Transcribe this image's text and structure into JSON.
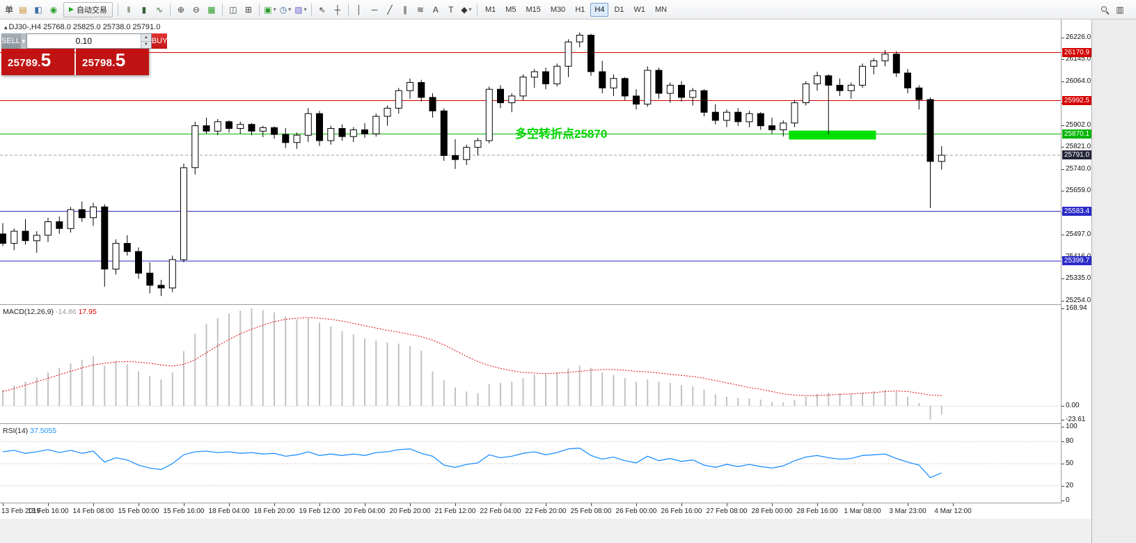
{
  "chart_title": {
    "marker": "▴",
    "symbol_period": "DJ30-,H4",
    "open": "25768.0",
    "high": "25825.0",
    "low": "25738.0",
    "close": "25791.0"
  },
  "trade_panel": {
    "sell_label": "SELL",
    "buy_label": "BUY",
    "volume": "0.10",
    "dropdown_caret": "▼",
    "stepper_up": "▲",
    "stepper_down": "▼",
    "sell_price": "25789.",
    "sell_price_big": "5",
    "buy_price": "25798.",
    "buy_price_big": "5"
  },
  "annotation_text": "多空转折点25870",
  "indicators": {
    "macd_name": "MACD(12,26,9)",
    "macd_main": "-14.86",
    "macd_signal": "17.95",
    "rsi_name": "RSI(14)",
    "rsi_value": "37.5055"
  },
  "colors": {
    "up": "#FFFFFF",
    "down": "#000000",
    "outline": "#000000",
    "macd_hist": "#c2c2c2",
    "macd_signal": "#e00000",
    "rsi": "#1E90FF",
    "annotation": "#00d400",
    "rect_fill": "#00e000",
    "bid_label_bg": "#24243a"
  },
  "toolbar": {
    "items": [
      {
        "kind": "label",
        "name": "order-menu-label",
        "text": "单"
      },
      {
        "kind": "icon",
        "name": "new-order-icon",
        "glyph": "▤",
        "color": "#c8821e"
      },
      {
        "kind": "icon",
        "name": "market-watch-icon",
        "glyph": "◧",
        "color": "#3a6ea5"
      },
      {
        "kind": "icon",
        "name": "sounds-icon",
        "glyph": "◉",
        "color": "#2a9d2a"
      },
      {
        "kind": "button",
        "name": "autotrading-button",
        "glyph": "▶",
        "glyph_color": "#18a818",
        "text": "自动交易"
      },
      {
        "kind": "sep"
      },
      {
        "kind": "icon",
        "name": "bar-chart-icon",
        "glyph": "‖",
        "color": "#3f5a2f"
      },
      {
        "kind": "icon",
        "name": "candlestick-chart-icon",
        "glyph": "▮",
        "color": "#355e35"
      },
      {
        "kind": "icon",
        "name": "line-chart-icon",
        "glyph": "∿",
        "color": "#356035"
      },
      {
        "kind": "sep"
      },
      {
        "kind": "icon",
        "name": "zoom-in-icon",
        "glyph": "⊕",
        "color": "#444444"
      },
      {
        "kind": "icon",
        "name": "zoom-out-icon",
        "glyph": "⊖",
        "color": "#444444"
      },
      {
        "kind": "icon",
        "name": "grid-icon",
        "glyph": "▦",
        "color": "#2a9d2a"
      },
      {
        "kind": "sep"
      },
      {
        "kind": "icon",
        "name": "tile-windows-icon",
        "glyph": "◫",
        "color": "#444444"
      },
      {
        "kind": "icon",
        "name": "cascade-windows-icon",
        "glyph": "⊞",
        "color": "#444444"
      },
      {
        "kind": "sep"
      },
      {
        "kind": "icon",
        "name": "new-chart-icon",
        "glyph": "▣",
        "color": "#2a9d2a",
        "caret": true
      },
      {
        "kind": "icon",
        "name": "period-icon",
        "glyph": "◷",
        "color": "#3a6ea5",
        "caret": true
      },
      {
        "kind": "icon",
        "name": "template-icon",
        "glyph": "▨",
        "color": "#6a5acd",
        "caret": true
      },
      {
        "kind": "sep"
      },
      {
        "kind": "icon",
        "name": "cursor-icon",
        "glyph": "⇖",
        "color": "#333333"
      },
      {
        "kind": "icon",
        "name": "crosshair-icon",
        "glyph": "┼",
        "color": "#333333"
      },
      {
        "kind": "sep"
      },
      {
        "kind": "icon",
        "name": "vertical-line-icon",
        "glyph": "│",
        "color": "#333333"
      },
      {
        "kind": "icon",
        "name": "horizontal-line-icon",
        "glyph": "─",
        "color": "#333333"
      },
      {
        "kind": "icon",
        "name": "trendline-icon",
        "glyph": "╱",
        "color": "#333333"
      },
      {
        "kind": "icon",
        "name": "channel-icon",
        "glyph": "∥",
        "color": "#333333"
      },
      {
        "kind": "icon",
        "name": "fibonacci-icon",
        "glyph": "≋",
        "color": "#333333"
      },
      {
        "kind": "icon",
        "name": "text-icon",
        "glyph": "A",
        "color": "#333333"
      },
      {
        "kind": "icon",
        "name": "label-icon",
        "glyph": "T",
        "color": "#333333"
      },
      {
        "kind": "icon",
        "name": "shapes-icon",
        "glyph": "◆",
        "color": "#333333",
        "caret": true
      },
      {
        "kind": "sep"
      },
      {
        "kind": "tf",
        "name": "timeframe-m1",
        "text": "M1"
      },
      {
        "kind": "tf",
        "name": "timeframe-m5",
        "text": "M5"
      },
      {
        "kind": "tf",
        "name": "timeframe-m15",
        "text": "M15"
      },
      {
        "kind": "tf",
        "name": "timeframe-m30",
        "text": "M30"
      },
      {
        "kind": "tf",
        "name": "timeframe-h1",
        "text": "H1"
      },
      {
        "kind": "tf",
        "name": "timeframe-h4",
        "text": "H4",
        "active": true
      },
      {
        "kind": "tf",
        "name": "timeframe-d1",
        "text": "D1"
      },
      {
        "kind": "tf",
        "name": "timeframe-w1",
        "text": "W1"
      },
      {
        "kind": "tf",
        "name": "timeframe-mn",
        "text": "MN"
      }
    ],
    "right_items": [
      {
        "kind": "cssicon",
        "name": "search-icon"
      },
      {
        "kind": "icon",
        "name": "new-window-icon",
        "glyph": "▥",
        "color": "#444444"
      }
    ]
  },
  "price_axis": {
    "scale_labels": [
      "26226.0",
      "26145.0",
      "26064.0",
      "25983.0",
      "25902.0",
      "25821.0",
      "25740.0",
      "25659.0",
      "25578.0",
      "25497.0",
      "25416.0",
      "25335.0",
      "25254.0"
    ],
    "macd_labels": [
      "168.94",
      "0.00",
      "-23.61"
    ],
    "rsi_labels": [
      "100",
      "80",
      "50",
      "20",
      "0"
    ]
  },
  "chart_data": {
    "type": "candlestick",
    "symbol": "DJ30-",
    "timeframe": "H4",
    "price_range": [
      25240,
      26293
    ],
    "last_ohlc": [
      25768.0,
      25825.0,
      25738.0,
      25791.0
    ],
    "current": {
      "price": 25791.0,
      "label": "25791.0"
    },
    "hlines": [
      {
        "price": 26170.9,
        "label": "26170.9",
        "color": "#d40000"
      },
      {
        "price": 25992.5,
        "label": "25992.5",
        "color": "#d40000"
      },
      {
        "price": 25870.1,
        "label": "25870.1",
        "color": "#00b400"
      },
      {
        "price": 25583.4,
        "label": "25583.4",
        "color": "#2a2ac8"
      },
      {
        "price": 25399.7,
        "label": "25399.7",
        "color": "#2a2ac8"
      }
    ],
    "annotation": {
      "bar": 45.3,
      "price": 25855
    },
    "rectangle": {
      "bar_start": 69.5,
      "bar_end": 77.2,
      "price_top": 25882,
      "price_bottom": 25849
    },
    "candles": [
      [
        25500,
        25540,
        25455,
        25465
      ],
      [
        25465,
        25520,
        25440,
        25510
      ],
      [
        25510,
        25555,
        25460,
        25475
      ],
      [
        25475,
        25510,
        25430,
        25495
      ],
      [
        25495,
        25560,
        25470,
        25545
      ],
      [
        25545,
        25565,
        25500,
        25520
      ],
      [
        25520,
        25600,
        25505,
        25590
      ],
      [
        25590,
        25620,
        25545,
        25560
      ],
      [
        25560,
        25615,
        25530,
        25600
      ],
      [
        25600,
        25610,
        25305,
        25370
      ],
      [
        25370,
        25480,
        25350,
        25465
      ],
      [
        25465,
        25495,
        25420,
        25435
      ],
      [
        25435,
        25450,
        25335,
        25355
      ],
      [
        25355,
        25395,
        25280,
        25310
      ],
      [
        25310,
        25330,
        25270,
        25300
      ],
      [
        25300,
        25420,
        25285,
        25405
      ],
      [
        25405,
        25760,
        25395,
        25745
      ],
      [
        25745,
        25915,
        25720,
        25900
      ],
      [
        25900,
        25930,
        25870,
        25880
      ],
      [
        25880,
        25925,
        25865,
        25915
      ],
      [
        25915,
        25920,
        25875,
        25890
      ],
      [
        25890,
        25915,
        25870,
        25905
      ],
      [
        25905,
        25910,
        25865,
        25880
      ],
      [
        25880,
        25900,
        25858,
        25893
      ],
      [
        25893,
        25898,
        25852,
        25868
      ],
      [
        25868,
        25892,
        25818,
        25838
      ],
      [
        25838,
        25875,
        25815,
        25865
      ],
      [
        25865,
        25965,
        25840,
        25945
      ],
      [
        25945,
        25955,
        25825,
        25845
      ],
      [
        25845,
        25900,
        25830,
        25890
      ],
      [
        25890,
        25905,
        25845,
        25860
      ],
      [
        25860,
        25895,
        25840,
        25885
      ],
      [
        25885,
        25910,
        25855,
        25870
      ],
      [
        25870,
        25945,
        25860,
        25935
      ],
      [
        25935,
        25975,
        25900,
        25965
      ],
      [
        25965,
        26040,
        25945,
        26030
      ],
      [
        26030,
        26075,
        26000,
        26060
      ],
      [
        26060,
        26070,
        25990,
        26005
      ],
      [
        26005,
        26020,
        25930,
        25955
      ],
      [
        25955,
        25965,
        25770,
        25790
      ],
      [
        25790,
        25850,
        25740,
        25775
      ],
      [
        25775,
        25830,
        25755,
        25820
      ],
      [
        25820,
        25855,
        25790,
        25845
      ],
      [
        25845,
        26045,
        25835,
        26035
      ],
      [
        26035,
        26050,
        25965,
        25985
      ],
      [
        25985,
        26020,
        25950,
        26010
      ],
      [
        26010,
        26090,
        25995,
        26080
      ],
      [
        26080,
        26110,
        26040,
        26100
      ],
      [
        26100,
        26115,
        26035,
        26055
      ],
      [
        26055,
        26130,
        26045,
        26120
      ],
      [
        26120,
        26220,
        26080,
        26210
      ],
      [
        26210,
        26245,
        26190,
        26235
      ],
      [
        26235,
        26240,
        26085,
        26100
      ],
      [
        26100,
        26140,
        26020,
        26040
      ],
      [
        26040,
        26090,
        26010,
        26075
      ],
      [
        26075,
        26080,
        25995,
        26010
      ],
      [
        26010,
        26035,
        25960,
        25980
      ],
      [
        25980,
        26120,
        25970,
        26105
      ],
      [
        26105,
        26115,
        26000,
        26020
      ],
      [
        26020,
        26060,
        25985,
        26050
      ],
      [
        26050,
        26065,
        25990,
        26005
      ],
      [
        26005,
        26040,
        25975,
        26030
      ],
      [
        26030,
        26035,
        25935,
        25950
      ],
      [
        25950,
        25980,
        25905,
        25920
      ],
      [
        25920,
        25960,
        25895,
        25950
      ],
      [
        25950,
        25965,
        25900,
        25915
      ],
      [
        25915,
        25955,
        25895,
        25945
      ],
      [
        25945,
        25950,
        25885,
        25900
      ],
      [
        25900,
        25930,
        25870,
        25885
      ],
      [
        25885,
        25920,
        25860,
        25910
      ],
      [
        25910,
        25995,
        25895,
        25985
      ],
      [
        25985,
        26065,
        25975,
        26055
      ],
      [
        26055,
        26100,
        26030,
        26085
      ],
      [
        26085,
        26090,
        25868,
        26050
      ],
      [
        26050,
        26075,
        26010,
        26030
      ],
      [
        26030,
        26060,
        26000,
        26050
      ],
      [
        26050,
        26130,
        26040,
        26120
      ],
      [
        26120,
        26150,
        26090,
        26140
      ],
      [
        26140,
        26180,
        26120,
        26165
      ],
      [
        26165,
        26175,
        26080,
        26095
      ],
      [
        26095,
        26110,
        26020,
        26040
      ],
      [
        26040,
        26050,
        25960,
        25997
      ],
      [
        25997,
        26005,
        25596,
        25768
      ],
      [
        25768,
        25825,
        25738,
        25791
      ]
    ],
    "macd": {
      "range": [
        -30,
        175
      ],
      "histogram": [
        28,
        35,
        42,
        50,
        58,
        66,
        74,
        80,
        86,
        70,
        78,
        72,
        60,
        52,
        46,
        58,
        95,
        125,
        142,
        152,
        160,
        165,
        168.94,
        166,
        162,
        155,
        150,
        152,
        145,
        138,
        130,
        124,
        117,
        113,
        110,
        108,
        104,
        96,
        60,
        45,
        32,
        25,
        22,
        38,
        40,
        42,
        48,
        54,
        55,
        58,
        65,
        70,
        66,
        58,
        54,
        48,
        42,
        46,
        42,
        40,
        36,
        34,
        28,
        20,
        16,
        14,
        13,
        11,
        7,
        6,
        10,
        16,
        21,
        23,
        22,
        21,
        23,
        26,
        28,
        24,
        16,
        5,
        -23.61,
        -14.86
      ],
      "signal": [
        25,
        30,
        36,
        42,
        48,
        54,
        60,
        66,
        71,
        74,
        76,
        77,
        76,
        74,
        71,
        69,
        72,
        80,
        92,
        104,
        115,
        125,
        133,
        140,
        146,
        150,
        152,
        153,
        152,
        150,
        147,
        143,
        139,
        135,
        131,
        128,
        124,
        120,
        114,
        106,
        96,
        86,
        77,
        70,
        65,
        61,
        58,
        57,
        56,
        57,
        58,
        60,
        62,
        63,
        63,
        62,
        60,
        59,
        57,
        55,
        53,
        51,
        48,
        44,
        40,
        36,
        32,
        29,
        25,
        21,
        19,
        18,
        18,
        19,
        20,
        21,
        22,
        23,
        25,
        26,
        25,
        22,
        19,
        17.95
      ]
    },
    "rsi": {
      "range": [
        0,
        100
      ],
      "levels": [
        80,
        50,
        20
      ],
      "values": [
        66,
        68,
        64,
        66,
        69,
        65,
        68,
        64,
        67,
        52,
        58,
        55,
        48,
        44,
        42,
        50,
        62,
        66,
        67,
        65,
        66,
        64,
        65,
        63,
        64,
        60,
        62,
        66,
        61,
        63,
        61,
        63,
        61,
        65,
        66,
        69,
        70,
        64,
        60,
        48,
        45,
        49,
        51,
        62,
        58,
        60,
        64,
        66,
        62,
        65,
        70,
        71,
        61,
        56,
        59,
        54,
        51,
        60,
        54,
        57,
        53,
        55,
        48,
        45,
        49,
        46,
        49,
        46,
        44,
        47,
        54,
        59,
        61,
        58,
        56,
        57,
        61,
        62,
        63,
        57,
        52,
        48,
        31,
        37.5
      ]
    },
    "time_labels": [
      "13 Feb 2019",
      "13 Feb 16:00",
      "14 Feb 08:00",
      "15 Feb 00:00",
      "15 Feb 16:00",
      "18 Feb 04:00",
      "18 Feb 20:00",
      "19 Feb 12:00",
      "20 Feb 04:00",
      "20 Feb 20:00",
      "21 Feb 12:00",
      "22 Feb 04:00",
      "22 Feb 20:00",
      "25 Feb 08:00",
      "26 Feb 00:00",
      "26 Feb 16:00",
      "27 Feb 08:00",
      "28 Feb 00:00",
      "28 Feb 16:00",
      "1 Mar 08:00",
      "3 Mar 23:00",
      "4 Mar 12:00"
    ]
  }
}
